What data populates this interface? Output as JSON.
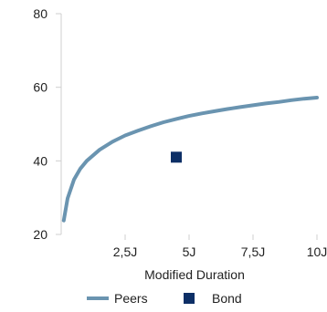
{
  "chart_data": {
    "type": "scatter",
    "xlabel": "Modified Duration",
    "ylabel": "",
    "xlim": [
      0,
      10
    ],
    "ylim": [
      20,
      80
    ],
    "grid": false,
    "legend_position": "bottom",
    "x_ticks": [
      {
        "value": 2.5,
        "label": "2,5J"
      },
      {
        "value": 5,
        "label": "5J"
      },
      {
        "value": 7.5,
        "label": "7,5J"
      },
      {
        "value": 10,
        "label": "10J"
      }
    ],
    "y_ticks": [
      {
        "value": 20,
        "label": "20"
      },
      {
        "value": 40,
        "label": "40"
      },
      {
        "value": 60,
        "label": "60"
      },
      {
        "value": 80,
        "label": "80"
      }
    ],
    "series": [
      {
        "name": "Peers",
        "kind": "line",
        "color": "#6a94b0",
        "x": [
          0.1,
          0.25,
          0.5,
          0.75,
          1.0,
          1.5,
          2.0,
          2.5,
          3.0,
          3.5,
          4.0,
          4.5,
          5.0,
          5.5,
          6.0,
          6.5,
          7.0,
          7.5,
          8.0,
          8.5,
          9.0,
          9.5,
          10.0
        ],
        "y": [
          23.8,
          29.8,
          34.9,
          37.9,
          40.0,
          43.0,
          45.2,
          46.9,
          48.2,
          49.4,
          50.5,
          51.4,
          52.2,
          52.9,
          53.5,
          54.1,
          54.6,
          55.1,
          55.6,
          56.0,
          56.5,
          56.9,
          57.2
        ]
      },
      {
        "name": "Bond",
        "kind": "marker",
        "color": "#0d2f66",
        "x": [
          4.5
        ],
        "y": [
          41.0
        ]
      }
    ]
  }
}
